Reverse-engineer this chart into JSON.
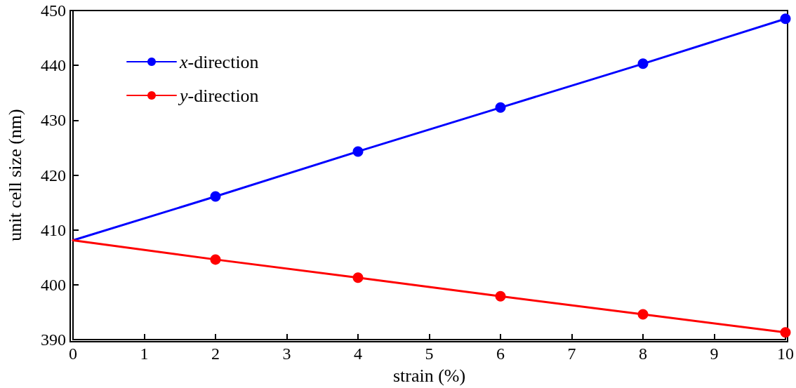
{
  "chart_data": {
    "type": "line",
    "xlabel": "strain (%)",
    "ylabel": "unit cell size (nm)",
    "xlim": [
      0,
      10
    ],
    "xticks": [
      0,
      1,
      2,
      3,
      4,
      5,
      6,
      7,
      8,
      9,
      10
    ],
    "ylim": [
      390,
      450
    ],
    "yticks": [
      390,
      400,
      410,
      420,
      430,
      440,
      450
    ],
    "grid": false,
    "legend": "top left",
    "line_style": "solid",
    "series": [
      {
        "name": "x-direction",
        "color": "#0000ff",
        "marker": "circle",
        "x": [
          2,
          4,
          6,
          8,
          10
        ],
        "values": [
          416.1,
          424.3,
          432.3,
          440.3,
          448.5
        ]
      },
      {
        "name": "y-direction",
        "color": "#ff0000",
        "marker": "circle",
        "x": [
          2,
          4,
          6,
          8,
          10
        ],
        "values": [
          404.6,
          401.3,
          397.9,
          394.6,
          391.3
        ]
      },
      {
        "color": "#0000ff",
        "marker": "none",
        "x": [
          0,
          2
        ],
        "values": [
          408.1,
          416.1
        ]
      },
      {
        "color": "#ff0000",
        "marker": "none",
        "x": [
          0,
          2
        ],
        "values": [
          408.1,
          404.6
        ]
      }
    ]
  }
}
